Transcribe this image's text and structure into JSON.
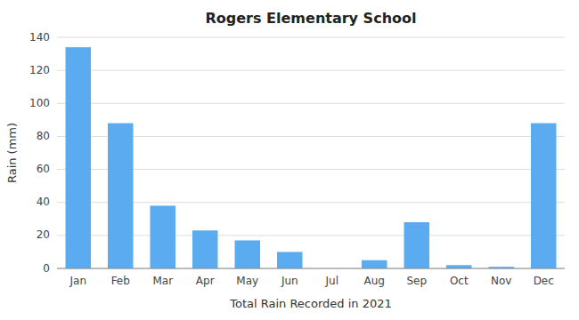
{
  "chart_data": {
    "type": "bar",
    "title": "Rogers Elementary School",
    "xlabel": "Total Rain Recorded in 2021",
    "ylabel": "Rain (mm)",
    "categories": [
      "Jan",
      "Feb",
      "Mar",
      "Apr",
      "May",
      "Jun",
      "Jul",
      "Aug",
      "Sep",
      "Oct",
      "Nov",
      "Dec"
    ],
    "values": [
      134,
      88,
      38,
      23,
      17,
      10,
      0,
      5,
      28,
      2,
      1,
      88
    ],
    "color": "#5aabf0",
    "ylim": [
      0,
      140
    ],
    "yticks": [
      0,
      20,
      40,
      60,
      80,
      100,
      120,
      140
    ],
    "grid": true
  }
}
